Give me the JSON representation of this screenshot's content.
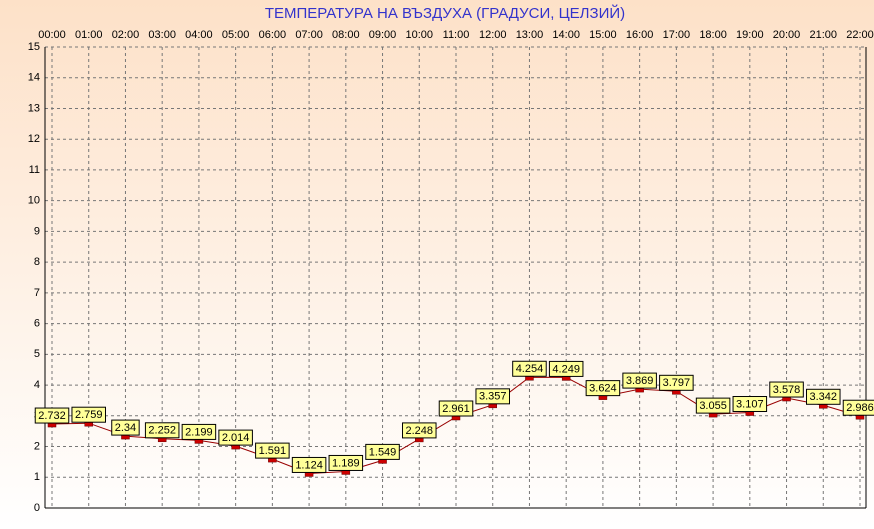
{
  "chart_data": {
    "type": "line",
    "title": "ТЕМПЕРАТУРА НА ВЪЗДУХА  (ГРАДУСИ, ЦЕЛЗИЙ)",
    "categories": [
      "00:00",
      "01:00",
      "02:00",
      "03:00",
      "04:00",
      "05:00",
      "06:00",
      "07:00",
      "08:00",
      "09:00",
      "10:00",
      "11:00",
      "12:00",
      "13:00",
      "14:00",
      "15:00",
      "16:00",
      "17:00",
      "18:00",
      "19:00",
      "20:00",
      "21:00",
      "22:00"
    ],
    "values": [
      2.732,
      2.759,
      2.34,
      2.252,
      2.199,
      2.014,
      1.591,
      1.124,
      1.189,
      1.549,
      2.248,
      2.961,
      3.357,
      4.254,
      4.249,
      3.624,
      3.869,
      3.797,
      3.055,
      3.107,
      3.578,
      3.342,
      2.986
    ],
    "color": "#990000",
    "marker_color": "#cc0000",
    "label_color": "#ffff99",
    "ylim": [
      0,
      15
    ],
    "yticks": [
      0,
      1,
      2,
      3,
      4,
      5,
      6,
      7,
      8,
      9,
      10,
      11,
      12,
      13,
      14,
      15
    ],
    "grid": true
  }
}
